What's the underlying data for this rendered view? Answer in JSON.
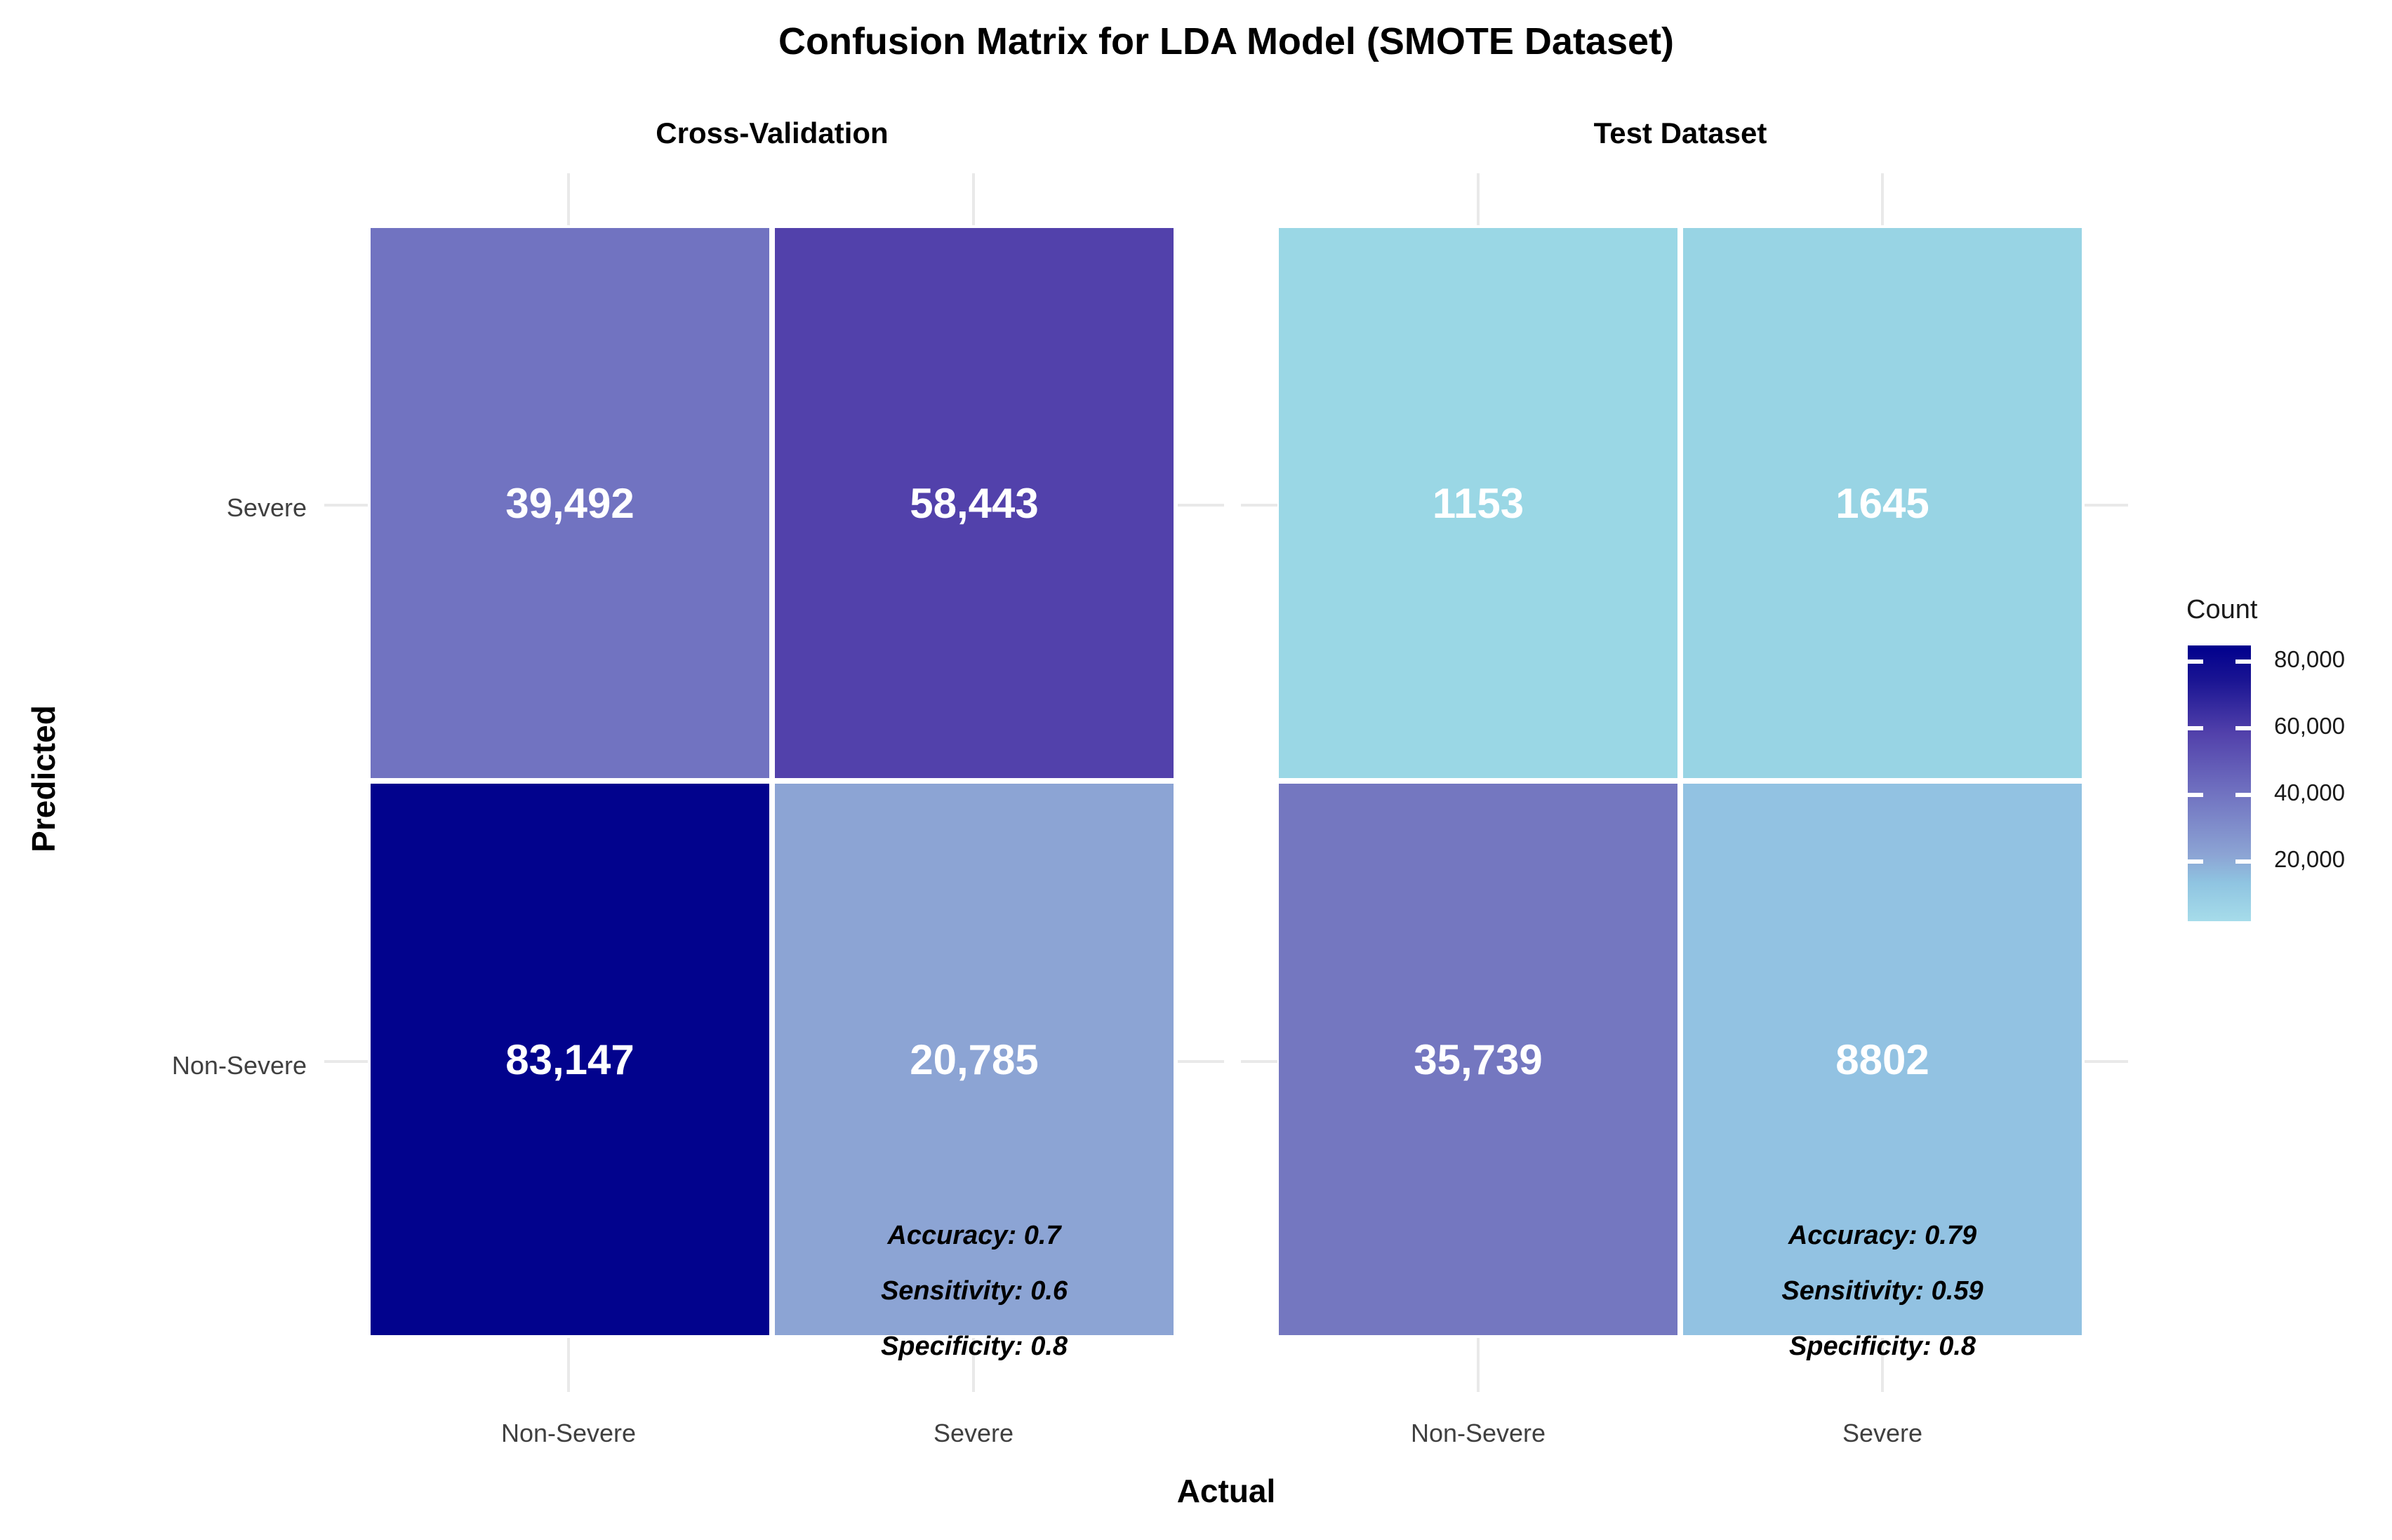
{
  "title": "Confusion Matrix for LDA Model (SMOTE Dataset)",
  "x_axis": {
    "title": "Actual",
    "tick_labels": [
      "Non-Severe",
      "Severe",
      "Non-Severe",
      "Severe"
    ]
  },
  "y_axis": {
    "title": "Predicted",
    "tick_labels": [
      "Severe",
      "Non-Severe"
    ]
  },
  "legend": {
    "title": "Count",
    "tick_labels": [
      "80,000",
      "60,000",
      "40,000",
      "20,000"
    ],
    "gradient": [
      "#a6dcea",
      "#8fc4e1 14%",
      "#8ca4d4 24%",
      "#7173c1 46%",
      "#5241ab 68%",
      "#1b1593 87%",
      "#00008d"
    ]
  },
  "panels": [
    {
      "label": "Cross-Validation",
      "cells": {
        "tl": {
          "predicted": "Severe",
          "actual": "Non-Severe",
          "value": "39,492",
          "color": "#7173c1"
        },
        "tr": {
          "predicted": "Severe",
          "actual": "Severe",
          "value": "58,443",
          "color": "#5241ab"
        },
        "bl": {
          "predicted": "Non-Severe",
          "actual": "Non-Severe",
          "value": "83,147",
          "color": "#02038d"
        },
        "br": {
          "predicted": "Non-Severe",
          "actual": "Severe",
          "value": "20,785",
          "color": "#8ca4d4"
        }
      },
      "metrics": [
        "Accuracy: 0.7",
        "Sensitivity: 0.6",
        "Specificity: 0.8"
      ]
    },
    {
      "label": "Test Dataset",
      "cells": {
        "tl": {
          "predicted": "Severe",
          "actual": "Non-Severe",
          "value": "1153",
          "color": "#9ad7e5"
        },
        "tr": {
          "predicted": "Severe",
          "actual": "Severe",
          "value": "1645",
          "color": "#98d4e4"
        },
        "bl": {
          "predicted": "Non-Severe",
          "actual": "Non-Severe",
          "value": "35,739",
          "color": "#7477c0"
        },
        "br": {
          "predicted": "Non-Severe",
          "actual": "Severe",
          "value": "8802",
          "color": "#92c2e2"
        }
      },
      "metrics": [
        "Accuracy: 0.79",
        "Sensitivity: 0.59",
        "Specificity: 0.8"
      ]
    }
  ],
  "chart_data": {
    "type": "heatmap",
    "title": "Confusion Matrix for LDA Model (SMOTE Dataset)",
    "xlabel": "Actual",
    "ylabel": "Predicted",
    "x_categories": [
      "Non-Severe",
      "Severe"
    ],
    "y_categories": [
      "Non-Severe",
      "Severe"
    ],
    "facets": [
      {
        "name": "Cross-Validation",
        "values": {
          "predicted_severe": {
            "actual_non_severe": 39492,
            "actual_severe": 58443
          },
          "predicted_non_severe": {
            "actual_non_severe": 83147,
            "actual_severe": 20785
          }
        },
        "annotations": {
          "accuracy": 0.7,
          "sensitivity": 0.6,
          "specificity": 0.8
        }
      },
      {
        "name": "Test Dataset",
        "values": {
          "predicted_severe": {
            "actual_non_severe": 1153,
            "actual_severe": 1645
          },
          "predicted_non_severe": {
            "actual_non_severe": 35739,
            "actual_severe": 8802
          }
        },
        "annotations": {
          "accuracy": 0.79,
          "sensitivity": 0.59,
          "specificity": 0.8
        }
      }
    ],
    "legend": {
      "title": "Count",
      "ticks": [
        20000,
        40000,
        60000,
        80000
      ],
      "range": [
        0,
        85000
      ],
      "low_color": "lightblue",
      "high_color": "darkblue",
      "position": "right"
    },
    "grid": true
  }
}
